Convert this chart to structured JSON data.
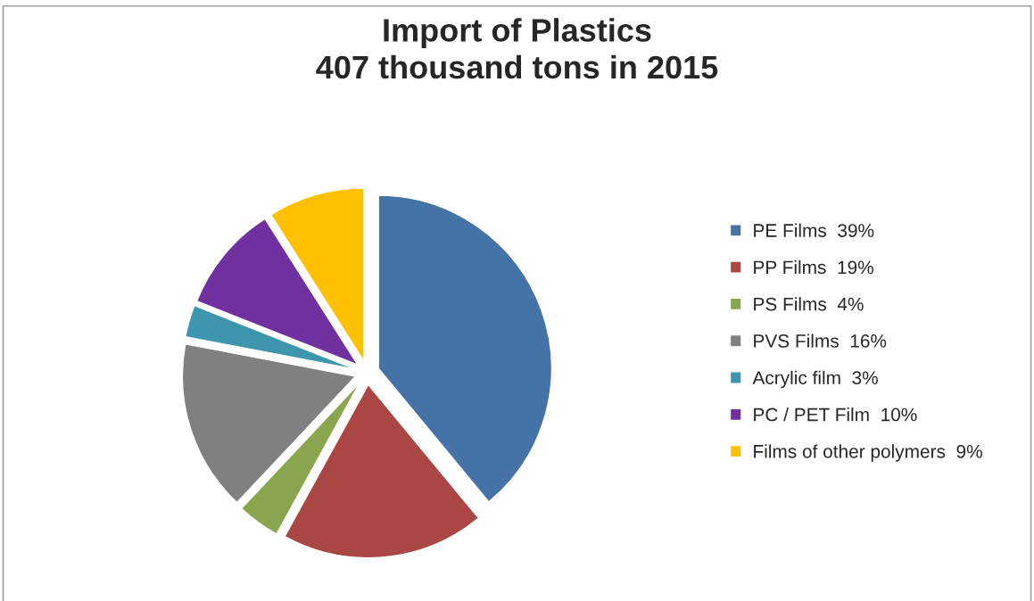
{
  "chart_data": {
    "type": "pie",
    "title": "Import of Plastics\n407 thousand tons in 2015",
    "categories": [
      "PE Films  39%",
      "PP Films  19%",
      "PS Films  4%",
      "PVS Films  16%",
      "Acrylic film  3%",
      "PC / PET Film  10%",
      "Films of other polymers  9%"
    ],
    "values": [
      39,
      19,
      4,
      16,
      3,
      10,
      9
    ],
    "colors": [
      "#4572a7",
      "#aa4643",
      "#89a54e",
      "#808080",
      "#3d96ae",
      "#7030a0",
      "#ffc000"
    ],
    "legend": "right"
  }
}
